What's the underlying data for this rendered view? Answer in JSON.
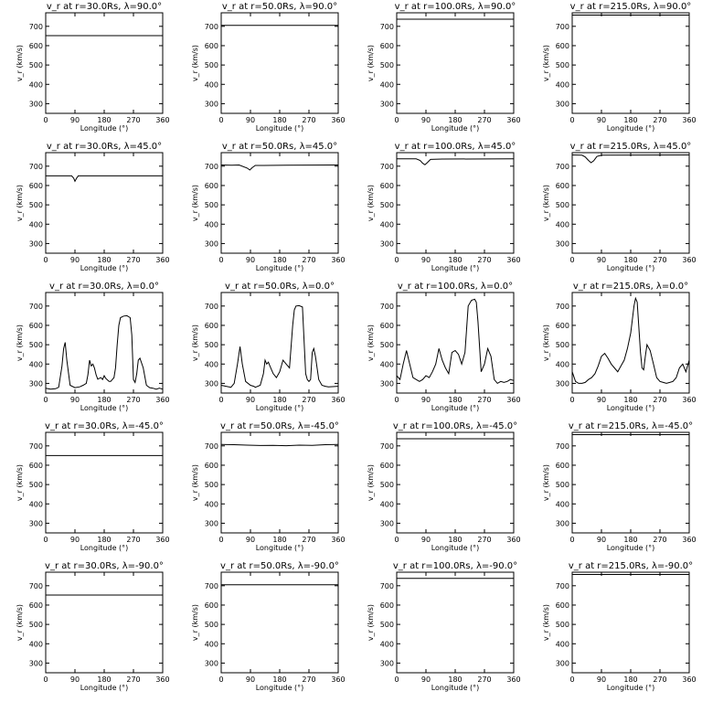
{
  "chart_data": [
    {
      "type": "line",
      "title": "v_r at r=30.0Rs, λ=90.0°",
      "xlabel": "Longitude (°)",
      "ylabel": "v_r (km/s)",
      "xlim": [
        0,
        360
      ],
      "ylim": [
        250,
        770
      ],
      "xticks": [
        0,
        90,
        180,
        270,
        360
      ],
      "yticks": [
        300,
        400,
        500,
        600,
        700
      ],
      "series": [
        {
          "x": [
            0,
            360
          ],
          "y": [
            652,
            652
          ]
        }
      ]
    },
    {
      "type": "line",
      "title": "v_r at r=50.0Rs, λ=90.0°",
      "xlabel": "Longitude (°)",
      "ylabel": "v_r (km/s)",
      "xlim": [
        0,
        360
      ],
      "ylim": [
        250,
        770
      ],
      "xticks": [
        0,
        90,
        180,
        270,
        360
      ],
      "yticks": [
        300,
        400,
        500,
        600,
        700
      ],
      "series": [
        {
          "x": [
            0,
            360
          ],
          "y": [
            705,
            705
          ]
        }
      ]
    },
    {
      "type": "line",
      "title": "v_r at r=100.0Rs, λ=90.0°",
      "xlabel": "Longitude (°)",
      "ylabel": "v_r (km/s)",
      "xlim": [
        0,
        360
      ],
      "ylim": [
        250,
        770
      ],
      "xticks": [
        0,
        90,
        180,
        270,
        360
      ],
      "yticks": [
        300,
        400,
        500,
        600,
        700
      ],
      "series": [
        {
          "x": [
            0,
            360
          ],
          "y": [
            737,
            737
          ]
        }
      ]
    },
    {
      "type": "line",
      "title": "v_r at r=215.0Rs, λ=90.0°",
      "xlabel": "Longitude (°)",
      "ylabel": "v_r (km/s)",
      "xlim": [
        0,
        360
      ],
      "ylim": [
        250,
        770
      ],
      "xticks": [
        0,
        90,
        180,
        270,
        360
      ],
      "yticks": [
        300,
        400,
        500,
        600,
        700
      ],
      "series": [
        {
          "x": [
            0,
            360
          ],
          "y": [
            758,
            758
          ]
        }
      ]
    },
    {
      "type": "line",
      "title": "v_r at r=30.0Rs, λ=45.0°",
      "xlabel": "Longitude (°)",
      "ylabel": "v_r (km/s)",
      "xlim": [
        0,
        360
      ],
      "ylim": [
        250,
        770
      ],
      "xticks": [
        0,
        90,
        180,
        270,
        360
      ],
      "yticks": [
        300,
        400,
        500,
        600,
        700
      ],
      "series": [
        {
          "x": [
            0,
            80,
            86,
            90,
            95,
            100,
            360
          ],
          "y": [
            650,
            650,
            638,
            622,
            638,
            650,
            650
          ]
        }
      ]
    },
    {
      "type": "line",
      "title": "v_r at r=50.0Rs, λ=45.0°",
      "xlabel": "Longitude (°)",
      "ylabel": "v_r (km/s)",
      "xlim": [
        0,
        360
      ],
      "ylim": [
        250,
        770
      ],
      "xticks": [
        0,
        90,
        180,
        270,
        360
      ],
      "yticks": [
        300,
        400,
        500,
        600,
        700
      ],
      "series": [
        {
          "x": [
            0,
            30,
            55,
            80,
            88,
            95,
            105,
            130,
            200,
            360
          ],
          "y": [
            706,
            705,
            706,
            690,
            680,
            692,
            704,
            704,
            705,
            706
          ]
        }
      ]
    },
    {
      "type": "line",
      "title": "v_r at r=100.0Rs, λ=45.0°",
      "xlabel": "Longitude (°)",
      "ylabel": "v_r (km/s)",
      "xlim": [
        0,
        360
      ],
      "ylim": [
        250,
        770
      ],
      "xticks": [
        0,
        90,
        180,
        270,
        360
      ],
      "yticks": [
        300,
        400,
        500,
        600,
        700
      ],
      "series": [
        {
          "x": [
            0,
            60,
            72,
            80,
            87,
            94,
            104,
            140,
            360
          ],
          "y": [
            738,
            738,
            730,
            715,
            707,
            718,
            735,
            737,
            738
          ]
        }
      ]
    },
    {
      "type": "line",
      "title": "v_r at r=215.0Rs, λ=45.0°",
      "xlabel": "Longitude (°)",
      "ylabel": "v_r (km/s)",
      "xlim": [
        0,
        360
      ],
      "ylim": [
        250,
        770
      ],
      "xticks": [
        0,
        90,
        180,
        270,
        360
      ],
      "yticks": [
        300,
        400,
        500,
        600,
        700
      ],
      "series": [
        {
          "x": [
            0,
            30,
            40,
            50,
            58,
            66,
            76,
            90,
            360
          ],
          "y": [
            758,
            757,
            748,
            730,
            718,
            728,
            750,
            757,
            758
          ]
        }
      ]
    },
    {
      "type": "line",
      "title": "v_r at r=30.0Rs, λ=0.0°",
      "xlabel": "Longitude (°)",
      "ylabel": "v_r (km/s)",
      "xlim": [
        0,
        360
      ],
      "ylim": [
        250,
        770
      ],
      "xticks": [
        0,
        90,
        180,
        270,
        360
      ],
      "yticks": [
        300,
        400,
        500,
        600,
        700
      ],
      "series": [
        {
          "x": [
            0,
            15,
            30,
            40,
            50,
            55,
            60,
            65,
            75,
            90,
            105,
            115,
            125,
            130,
            135,
            140,
            145,
            150,
            155,
            160,
            170,
            175,
            180,
            185,
            195,
            200,
            205,
            210,
            215,
            220,
            225,
            230,
            240,
            250,
            260,
            265,
            270,
            275,
            280,
            285,
            290,
            300,
            310,
            320,
            330,
            340,
            350,
            360
          ],
          "y": [
            275,
            270,
            272,
            280,
            390,
            480,
            512,
            420,
            290,
            278,
            282,
            290,
            300,
            345,
            420,
            390,
            400,
            380,
            345,
            322,
            330,
            320,
            340,
            325,
            310,
            310,
            320,
            330,
            380,
            500,
            600,
            640,
            648,
            650,
            640,
            550,
            320,
            305,
            350,
            420,
            430,
            380,
            290,
            278,
            275,
            270,
            275,
            270
          ]
        }
      ]
    },
    {
      "type": "line",
      "title": "v_r at r=50.0Rs, λ=0.0°",
      "xlabel": "Longitude (°)",
      "ylabel": "v_r (km/s)",
      "xlim": [
        0,
        360
      ],
      "ylim": [
        250,
        770
      ],
      "xticks": [
        0,
        90,
        180,
        270,
        360
      ],
      "yticks": [
        300,
        400,
        500,
        600,
        700
      ],
      "series": [
        {
          "x": [
            0,
            15,
            30,
            40,
            50,
            58,
            65,
            75,
            90,
            100,
            105,
            120,
            130,
            135,
            140,
            145,
            150,
            160,
            170,
            180,
            190,
            200,
            210,
            220,
            225,
            230,
            240,
            250,
            260,
            265,
            270,
            275,
            280,
            285,
            290,
            300,
            310,
            320,
            330,
            360
          ],
          "y": [
            290,
            285,
            280,
            300,
            400,
            490,
            400,
            310,
            290,
            285,
            280,
            290,
            350,
            420,
            400,
            410,
            390,
            350,
            330,
            360,
            420,
            400,
            380,
            600,
            680,
            700,
            702,
            695,
            350,
            320,
            310,
            320,
            460,
            480,
            440,
            320,
            290,
            285,
            282,
            285
          ]
        }
      ]
    },
    {
      "type": "line",
      "title": "v_r at r=100.0Rs, λ=0.0°",
      "xlabel": "Longitude (°)",
      "ylabel": "v_r (km/s)",
      "xlim": [
        0,
        360
      ],
      "ylim": [
        250,
        770
      ],
      "xticks": [
        0,
        90,
        180,
        270,
        360
      ],
      "yticks": [
        300,
        400,
        500,
        600,
        700
      ],
      "series": [
        {
          "x": [
            0,
            10,
            20,
            30,
            40,
            50,
            60,
            70,
            80,
            90,
            100,
            110,
            120,
            130,
            140,
            150,
            160,
            170,
            180,
            190,
            200,
            210,
            220,
            230,
            240,
            245,
            250,
            260,
            270,
            280,
            290,
            300,
            310,
            320,
            330,
            340,
            350,
            360
          ],
          "y": [
            340,
            320,
            400,
            470,
            400,
            330,
            320,
            310,
            320,
            340,
            330,
            360,
            400,
            480,
            420,
            380,
            350,
            460,
            470,
            450,
            400,
            460,
            700,
            730,
            735,
            720,
            620,
            360,
            400,
            480,
            440,
            320,
            300,
            310,
            305,
            310,
            320,
            315
          ]
        }
      ]
    },
    {
      "type": "line",
      "title": "v_r at r=215.0Rs, λ=0.0°",
      "xlabel": "Longitude (°)",
      "ylabel": "v_r (km/s)",
      "xlim": [
        0,
        360
      ],
      "ylim": [
        250,
        770
      ],
      "xticks": [
        0,
        90,
        180,
        270,
        360
      ],
      "yticks": [
        300,
        400,
        500,
        600,
        700
      ],
      "series": [
        {
          "x": [
            0,
            10,
            20,
            30,
            40,
            50,
            60,
            70,
            80,
            90,
            100,
            110,
            120,
            130,
            140,
            150,
            160,
            170,
            180,
            190,
            195,
            200,
            210,
            215,
            220,
            225,
            230,
            240,
            250,
            260,
            270,
            280,
            290,
            300,
            310,
            320,
            330,
            340,
            350,
            360
          ],
          "y": [
            360,
            310,
            300,
            300,
            305,
            320,
            330,
            350,
            390,
            440,
            455,
            430,
            400,
            380,
            360,
            390,
            420,
            480,
            560,
            700,
            740,
            720,
            460,
            380,
            370,
            440,
            500,
            470,
            400,
            330,
            310,
            305,
            300,
            305,
            310,
            330,
            380,
            400,
            360,
            420
          ]
        }
      ]
    },
    {
      "type": "line",
      "title": "v_r at r=30.0Rs, λ=-45.0°",
      "xlabel": "Longitude (°)",
      "ylabel": "v_r (km/s)",
      "xlim": [
        0,
        360
      ],
      "ylim": [
        250,
        770
      ],
      "xticks": [
        0,
        90,
        180,
        270,
        360
      ],
      "yticks": [
        300,
        400,
        500,
        600,
        700
      ],
      "series": [
        {
          "x": [
            0,
            360
          ],
          "y": [
            650,
            650
          ]
        }
      ]
    },
    {
      "type": "line",
      "title": "v_r at r=50.0Rs, λ=-45.0°",
      "xlabel": "Longitude (°)",
      "ylabel": "v_r (km/s)",
      "xlim": [
        0,
        360
      ],
      "ylim": [
        250,
        770
      ],
      "xticks": [
        0,
        90,
        180,
        270,
        360
      ],
      "yticks": [
        300,
        400,
        500,
        600,
        700
      ],
      "series": [
        {
          "x": [
            0,
            40,
            80,
            120,
            160,
            200,
            240,
            280,
            320,
            360
          ],
          "y": [
            707,
            706,
            704,
            702,
            703,
            701,
            704,
            703,
            706,
            707
          ]
        }
      ]
    },
    {
      "type": "line",
      "title": "v_r at r=100.0Rs, λ=-45.0°",
      "xlabel": "Longitude (°)",
      "ylabel": "v_r (km/s)",
      "xlim": [
        0,
        360
      ],
      "ylim": [
        250,
        770
      ],
      "xticks": [
        0,
        90,
        180,
        270,
        360
      ],
      "yticks": [
        300,
        400,
        500,
        600,
        700
      ],
      "series": [
        {
          "x": [
            0,
            360
          ],
          "y": [
            737,
            737
          ]
        }
      ]
    },
    {
      "type": "line",
      "title": "v_r at r=215.0Rs, λ=-45.0°",
      "xlabel": "Longitude (°)",
      "ylabel": "v_r (km/s)",
      "xlim": [
        0,
        360
      ],
      "ylim": [
        250,
        770
      ],
      "xticks": [
        0,
        90,
        180,
        270,
        360
      ],
      "yticks": [
        300,
        400,
        500,
        600,
        700
      ],
      "series": [
        {
          "x": [
            0,
            360
          ],
          "y": [
            758,
            758
          ]
        }
      ]
    },
    {
      "type": "line",
      "title": "v_r at r=30.0Rs, λ=-90.0°",
      "xlabel": "Longitude (°)",
      "ylabel": "v_r (km/s)",
      "xlim": [
        0,
        360
      ],
      "ylim": [
        250,
        770
      ],
      "xticks": [
        0,
        90,
        180,
        270,
        360
      ],
      "yticks": [
        300,
        400,
        500,
        600,
        700
      ],
      "series": [
        {
          "x": [
            0,
            360
          ],
          "y": [
            652,
            652
          ]
        }
      ]
    },
    {
      "type": "line",
      "title": "v_r at r=50.0Rs, λ=-90.0°",
      "xlabel": "Longitude (°)",
      "ylabel": "v_r (km/s)",
      "xlim": [
        0,
        360
      ],
      "ylim": [
        250,
        770
      ],
      "xticks": [
        0,
        90,
        180,
        270,
        360
      ],
      "yticks": [
        300,
        400,
        500,
        600,
        700
      ],
      "series": [
        {
          "x": [
            0,
            360
          ],
          "y": [
            705,
            705
          ]
        }
      ]
    },
    {
      "type": "line",
      "title": "v_r at r=100.0Rs, λ=-90.0°",
      "xlabel": "Longitude (°)",
      "ylabel": "v_r (km/s)",
      "xlim": [
        0,
        360
      ],
      "ylim": [
        250,
        770
      ],
      "xticks": [
        0,
        90,
        180,
        270,
        360
      ],
      "yticks": [
        300,
        400,
        500,
        600,
        700
      ],
      "series": [
        {
          "x": [
            0,
            360
          ],
          "y": [
            738,
            738
          ]
        }
      ]
    },
    {
      "type": "line",
      "title": "v_r at r=215.0Rs, λ=-90.0°",
      "xlabel": "Longitude (°)",
      "ylabel": "v_r (km/s)",
      "xlim": [
        0,
        360
      ],
      "ylim": [
        250,
        770
      ],
      "xticks": [
        0,
        90,
        180,
        270,
        360
      ],
      "yticks": [
        300,
        400,
        500,
        600,
        700
      ],
      "series": [
        {
          "x": [
            0,
            360
          ],
          "y": [
            758,
            758
          ]
        }
      ]
    }
  ]
}
